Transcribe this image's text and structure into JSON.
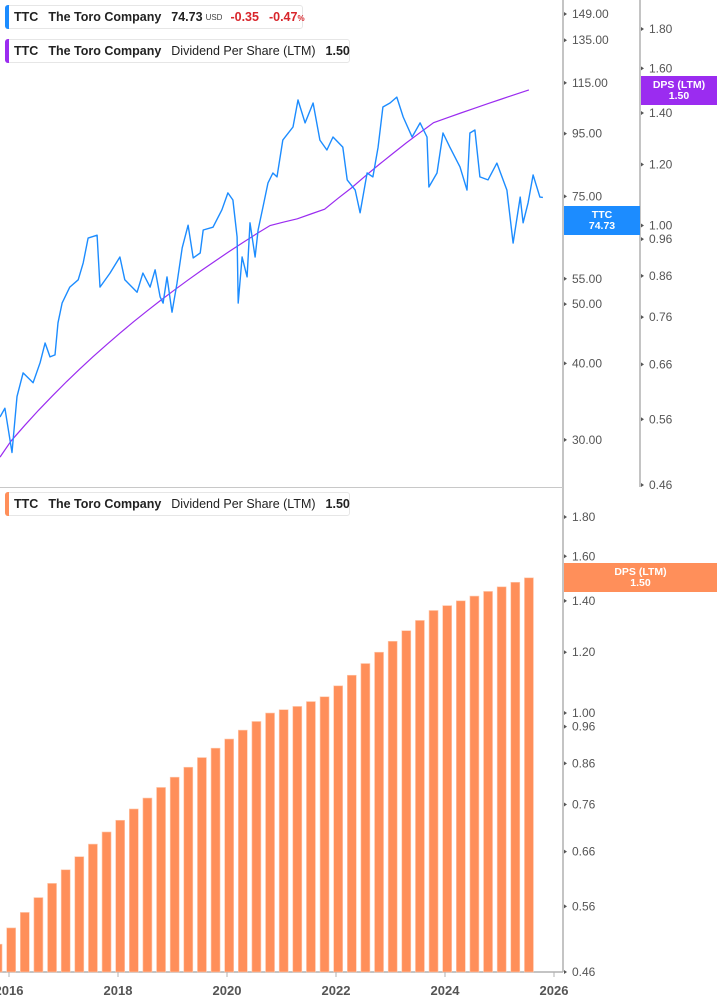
{
  "legend_price": {
    "ticker": "TTC",
    "name": "The Toro Company",
    "price": "74.73",
    "currency": "USD",
    "change": "-0.35",
    "change_pct": "-0.47",
    "pct_sign": "%"
  },
  "legend_dps_top": {
    "ticker": "TTC",
    "name": "The Toro Company",
    "metric": "Dividend Per Share (LTM)",
    "value": "1.50"
  },
  "legend_dps_bottom": {
    "ticker": "TTC",
    "name": "The Toro Company",
    "metric": "Dividend Per Share (LTM)",
    "value": "1.50"
  },
  "badges": {
    "price": {
      "label": "TTC",
      "value": "74.73"
    },
    "dps_top": {
      "label": "DPS (LTM)",
      "value": "1.50"
    },
    "dps_bottom": {
      "label": "DPS (LTM)",
      "value": "1.50"
    }
  },
  "colors": {
    "price": "#1c8cff",
    "dps_line": "#9b2cf0",
    "dps_bar": "#ff8f5a",
    "axis": "#b0b0b0"
  },
  "chart_data": [
    {
      "type": "line",
      "panel": "top",
      "scale": "log",
      "series": [
        {
          "name": "TTC",
          "axis": "left-price",
          "values_ref": "price",
          "dates": [
            "2015-11-01",
            "2015-12-04",
            "2016-01-21",
            "2016-02-24",
            "2016-04-04",
            "2016-06-10",
            "2016-07-27",
            "2016-08-30",
            "2016-10-02",
            "2016-11-05",
            "2016-11-25",
            "2016-12-22",
            "2017-02-13",
            "2017-04-08",
            "2017-05-11",
            "2017-06-14",
            "2017-08-13",
            "2017-09-02",
            "2017-11-08",
            "2018-01-14",
            "2018-02-16",
            "2018-05-07",
            "2018-06-16",
            "2018-08-03",
            "2018-09-06",
            "2018-10-09",
            "2018-10-29",
            "2018-11-25",
            "2018-12-28",
            "2019-01-31",
            "2019-03-05",
            "2019-04-14",
            "2019-05-18",
            "2019-07-04",
            "2019-07-24",
            "2019-09-29",
            "2019-11-28",
            "2020-01-07",
            "2020-02-10",
            "2020-03-08",
            "2020-03-15",
            "2020-04-11",
            "2020-05-14",
            "2020-06-03",
            "2020-07-07",
            "2020-07-27",
            "2020-08-29",
            "2020-10-02",
            "2020-11-04",
            "2020-12-01",
            "2021-01-10",
            "2021-03-17",
            "2021-04-20",
            "2021-06-07",
            "2021-07-30",
            "2021-09-15",
            "2021-11-01",
            "2021-12-11",
            "2022-02-16",
            "2022-03-15",
            "2022-05-08",
            "2022-06-10",
            "2022-07-27",
            "2022-09-05",
            "2022-10-09",
            "2022-11-11",
            "2022-12-28",
            "2023-02-13",
            "2023-03-25",
            "2023-05-24",
            "2023-07-17",
            "2023-09-02",
            "2023-09-15",
            "2023-11-08",
            "2023-12-18",
            "2024-02-03",
            "2024-04-10",
            "2024-05-27",
            "2024-06-16",
            "2024-07-19",
            "2024-08-22",
            "2024-10-15",
            "2024-12-14",
            "2025-02-20",
            "2025-04-01",
            "2025-05-18",
            "2025-06-07",
            "2025-07-10",
            "2025-08-13",
            "2025-09-28",
            "2025-10-18"
          ],
          "values": [
            32.7,
            33.8,
            28.6,
            35.3,
            38.6,
            37.2,
            40.1,
            43.2,
            41.0,
            41.3,
            46.6,
            50.2,
            53.3,
            54.8,
            58.4,
            64.1,
            64.8,
            53.3,
            56.2,
            59.7,
            54.8,
            52.3,
            56.2,
            53.3,
            56.9,
            51.4,
            50.2,
            55.4,
            48.5,
            54.1,
            61.8,
            67.3,
            59.5,
            60.6,
            66.1,
            66.8,
            71.3,
            76.0,
            74.0,
            64.4,
            50.2,
            59.7,
            55.4,
            67.9,
            59.7,
            66.1,
            72.1,
            78.9,
            81.9,
            80.7,
            92.7,
            97.4,
            107.8,
            98.9,
            106.6,
            92.7,
            89.3,
            93.8,
            90.3,
            79.8,
            76.8,
            70.5,
            81.9,
            80.7,
            90.3,
            105.0,
            106.6,
            109.0,
            101.1,
            93.8,
            98.9,
            93.8,
            77.7,
            81.9,
            95.2,
            90.3,
            83.8,
            76.8,
            95.2,
            96.3,
            80.7,
            79.8,
            85.0,
            76.8,
            62.9,
            74.8,
            67.9,
            73.2,
            81.3,
            74.8,
            74.73
          ]
        }
      ],
      "price_axis_ticks": [
        "149.00",
        "135.00",
        "115.00",
        "95.00",
        "75.00",
        "55.00",
        "50.00",
        "40.00",
        "30.00"
      ],
      "dps_axis_ticks": [
        "1.80",
        "1.60",
        "1.40",
        "1.20",
        "1.00",
        "0.96",
        "0.86",
        "0.76",
        "0.66",
        "0.56",
        "0.46"
      ],
      "price_range": [
        27.5,
        152
      ],
      "dps_range": [
        0.46,
        1.8
      ]
    },
    {
      "type": "bar",
      "panel": "bottom",
      "scale": "log",
      "name": "Dividend Per Share (LTM)",
      "dates": [
        "2015-10",
        "2016-01",
        "2016-04",
        "2016-07",
        "2016-10",
        "2017-01",
        "2017-04",
        "2017-07",
        "2017-10",
        "2018-01",
        "2018-04",
        "2018-07",
        "2018-10",
        "2019-01",
        "2019-04",
        "2019-07",
        "2019-10",
        "2020-01",
        "2020-04",
        "2020-07",
        "2020-10",
        "2021-01",
        "2021-04",
        "2021-07",
        "2021-10",
        "2022-01",
        "2022-04",
        "2022-07",
        "2022-10",
        "2023-01",
        "2023-04",
        "2023-07",
        "2023-10",
        "2024-01",
        "2024-04",
        "2024-07",
        "2024-10",
        "2025-01",
        "2025-04",
        "2025-07"
      ],
      "values": [
        0.5,
        0.525,
        0.55,
        0.575,
        0.6,
        0.625,
        0.65,
        0.675,
        0.7,
        0.725,
        0.75,
        0.775,
        0.8,
        0.825,
        0.85,
        0.875,
        0.9,
        0.925,
        0.95,
        0.975,
        1.0,
        1.01,
        1.02,
        1.035,
        1.05,
        1.085,
        1.12,
        1.16,
        1.2,
        1.24,
        1.28,
        1.32,
        1.36,
        1.38,
        1.4,
        1.42,
        1.44,
        1.46,
        1.48,
        1.5
      ],
      "axis_ticks": [
        "1.80",
        "1.60",
        "1.40",
        "1.20",
        "1.00",
        "0.96",
        "0.86",
        "0.76",
        "0.66",
        "0.56",
        "0.46"
      ],
      "ylim": [
        0.46,
        1.8
      ]
    }
  ],
  "x_axis": {
    "ticks": [
      "2016",
      "2018",
      "2020",
      "2022",
      "2024",
      "2026"
    ]
  }
}
